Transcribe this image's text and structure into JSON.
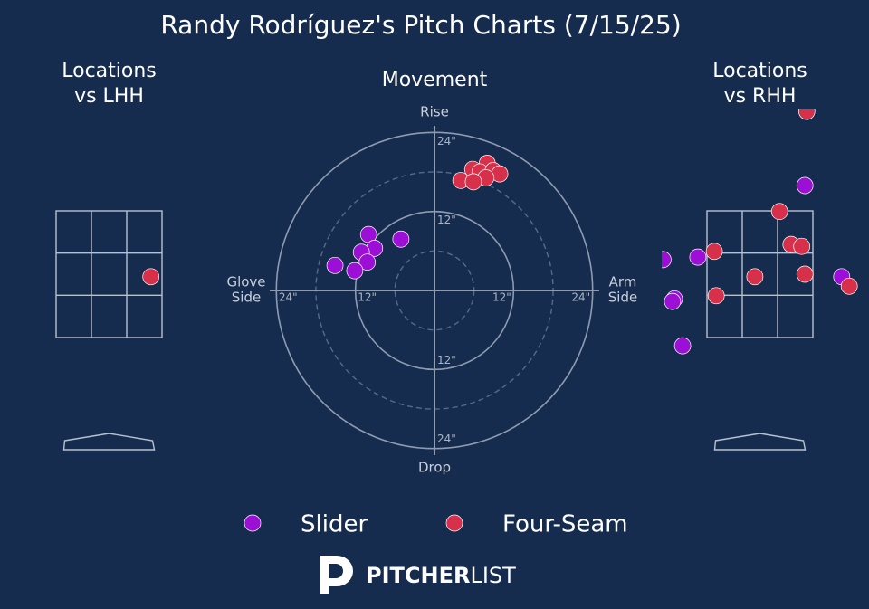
{
  "title": "Randy Rodríguez's Pitch Charts (7/15/25)",
  "chart_data": [
    {
      "type": "scatter",
      "title": "Movement",
      "axis_labels": {
        "top": "Rise",
        "bottom": "Drop",
        "left": [
          "Glove",
          "Side"
        ],
        "right": [
          "Arm",
          "Side"
        ]
      },
      "xlim": [
        -25,
        25
      ],
      "ylim": [
        -25,
        25
      ],
      "xticks": [
        {
          "value": -24,
          "label": "24\""
        },
        {
          "value": -12,
          "label": "12\""
        },
        {
          "value": 12,
          "label": "12\""
        },
        {
          "value": 24,
          "label": "24\""
        }
      ],
      "yticks": [
        {
          "value": 24,
          "label": "24\""
        },
        {
          "value": 12,
          "label": "12\""
        },
        {
          "value": -12,
          "label": "12\""
        },
        {
          "value": -24,
          "label": "24\""
        }
      ],
      "series": [
        {
          "name": "Slider",
          "color": "#9b10d4",
          "x": [
            -5.1,
            -10.0,
            -9.1,
            -11.1,
            -10.2,
            -15.1,
            -12.1
          ],
          "values": [
            7.8,
            8.5,
            6.4,
            5.8,
            4.3,
            3.8,
            3.0
          ]
        },
        {
          "name": "Four-Seam",
          "color": "#d7304b",
          "x": [
            8.0,
            5.8,
            6.9,
            8.9,
            9.9,
            7.8,
            4.0,
            5.9
          ],
          "values": [
            19.3,
            18.4,
            18.0,
            18.2,
            17.7,
            17.1,
            16.7,
            16.5
          ]
        }
      ]
    },
    {
      "type": "location",
      "title": [
        "Locations",
        "vs LHH"
      ],
      "xlim": [
        -1.55,
        1.55
      ],
      "ylim": [
        -0.5,
        5.1
      ],
      "series": [
        {
          "name": "Slider",
          "color": "#9b10d4",
          "x": [],
          "values": []
        },
        {
          "name": "Four-Seam",
          "color": "#d7304b",
          "x": [
            0.66
          ],
          "values": [
            2.46
          ]
        }
      ]
    },
    {
      "type": "location",
      "title": [
        "Locations",
        "vs RHH"
      ],
      "xlim": [
        -1.55,
        1.55
      ],
      "ylim": [
        -0.5,
        5.1
      ],
      "series": [
        {
          "name": "Slider",
          "color": "#9b10d4",
          "x": [
            0.71,
            -1.53,
            -0.98,
            -1.35,
            -1.38,
            -1.22,
            1.29
          ],
          "values": [
            3.9,
            2.73,
            2.77,
            2.11,
            2.07,
            1.37,
            2.46
          ]
        },
        {
          "name": "Four-Seam",
          "color": "#d7304b",
          "x": [
            0.74,
            0.31,
            -0.72,
            0.49,
            0.66,
            -0.08,
            0.71,
            -0.69,
            1.41
          ],
          "values": [
            5.07,
            3.49,
            2.86,
            2.97,
            2.94,
            2.46,
            2.5,
            2.16,
            2.31
          ]
        }
      ]
    }
  ],
  "brand": [
    "PITCHER",
    "LIST"
  ]
}
